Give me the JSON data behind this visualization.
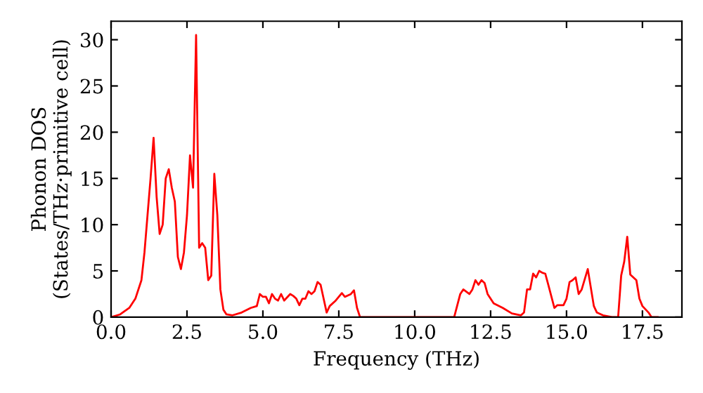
{
  "chart_data": {
    "type": "line",
    "xlabel": "Frequency (THz)",
    "ylabel": "Phonon DOS\n(States/THz·primitive cell)",
    "xlim": [
      0,
      18.8
    ],
    "ylim": [
      0,
      32
    ],
    "xticks": [
      {
        "value": 0,
        "label": "0.0"
      },
      {
        "value": 2.5,
        "label": "2.5"
      },
      {
        "value": 5,
        "label": "5.0"
      },
      {
        "value": 7.5,
        "label": "7.5"
      },
      {
        "value": 10,
        "label": "10.0"
      },
      {
        "value": 12.5,
        "label": "12.5"
      },
      {
        "value": 15,
        "label": "15.0"
      },
      {
        "value": 17.5,
        "label": "17.5"
      }
    ],
    "yticks": [
      0,
      5,
      10,
      15,
      20,
      25,
      30
    ],
    "grid": false,
    "legend": false,
    "series": [
      {
        "color": "#ff0000",
        "line_style": "solid",
        "x": [
          0,
          0.3,
          0.6,
          0.8,
          1.0,
          1.1,
          1.2,
          1.3,
          1.4,
          1.5,
          1.6,
          1.7,
          1.8,
          1.9,
          2.0,
          2.1,
          2.2,
          2.3,
          2.4,
          2.5,
          2.6,
          2.7,
          2.8,
          2.9,
          3.0,
          3.1,
          3.2,
          3.3,
          3.4,
          3.5,
          3.6,
          3.7,
          3.8,
          4.0,
          4.3,
          4.6,
          4.8,
          4.9,
          5.0,
          5.1,
          5.2,
          5.3,
          5.4,
          5.5,
          5.6,
          5.7,
          5.9,
          6.0,
          6.1,
          6.2,
          6.3,
          6.4,
          6.5,
          6.6,
          6.7,
          6.8,
          6.9,
          7.0,
          7.1,
          7.2,
          7.4,
          7.6,
          7.7,
          7.9,
          8.0,
          8.1,
          8.2,
          11.3,
          11.5,
          11.6,
          11.8,
          11.9,
          12.0,
          12.1,
          12.2,
          12.3,
          12.4,
          12.6,
          12.9,
          13.2,
          13.5,
          13.6,
          13.7,
          13.8,
          13.9,
          14.0,
          14.1,
          14.2,
          14.3,
          14.4,
          14.6,
          14.7,
          14.9,
          15.0,
          15.1,
          15.2,
          15.3,
          15.4,
          15.5,
          15.7,
          15.9,
          16.0,
          16.2,
          16.5,
          16.7,
          16.8,
          16.9,
          17.0,
          17.1,
          17.3,
          17.4,
          17.5,
          17.7,
          17.8,
          18.0
        ],
        "values": [
          0,
          0.3,
          1,
          2,
          4,
          7,
          11,
          15,
          19.4,
          13,
          9,
          10,
          15,
          16,
          14,
          12.5,
          6.5,
          5.2,
          7,
          11,
          17.5,
          14,
          30.5,
          7.5,
          8,
          7.5,
          4,
          4.5,
          15.5,
          11,
          3,
          0.8,
          0.3,
          0.2,
          0.5,
          1,
          1.2,
          2.5,
          2.2,
          2.2,
          1.5,
          2.5,
          2,
          1.8,
          2.5,
          1.8,
          2.5,
          2.3,
          2,
          1.3,
          2,
          2,
          2.8,
          2.5,
          2.8,
          3.8,
          3.5,
          2,
          0.5,
          1.2,
          1.8,
          2.6,
          2.2,
          2.5,
          2.9,
          1,
          0,
          0,
          2.5,
          3,
          2.5,
          3,
          4,
          3.5,
          4,
          3.7,
          2.5,
          1.5,
          1,
          0.4,
          0.2,
          0.5,
          3,
          3,
          4.7,
          4.3,
          5,
          4.8,
          4.7,
          3.5,
          1,
          1.3,
          1.3,
          2,
          3.8,
          4,
          4.3,
          2.5,
          3,
          5.2,
          1.2,
          0.5,
          0.2,
          0,
          0,
          4.5,
          6,
          8.7,
          4.6,
          4,
          2,
          1.2,
          0.5,
          0,
          0
        ]
      }
    ]
  }
}
